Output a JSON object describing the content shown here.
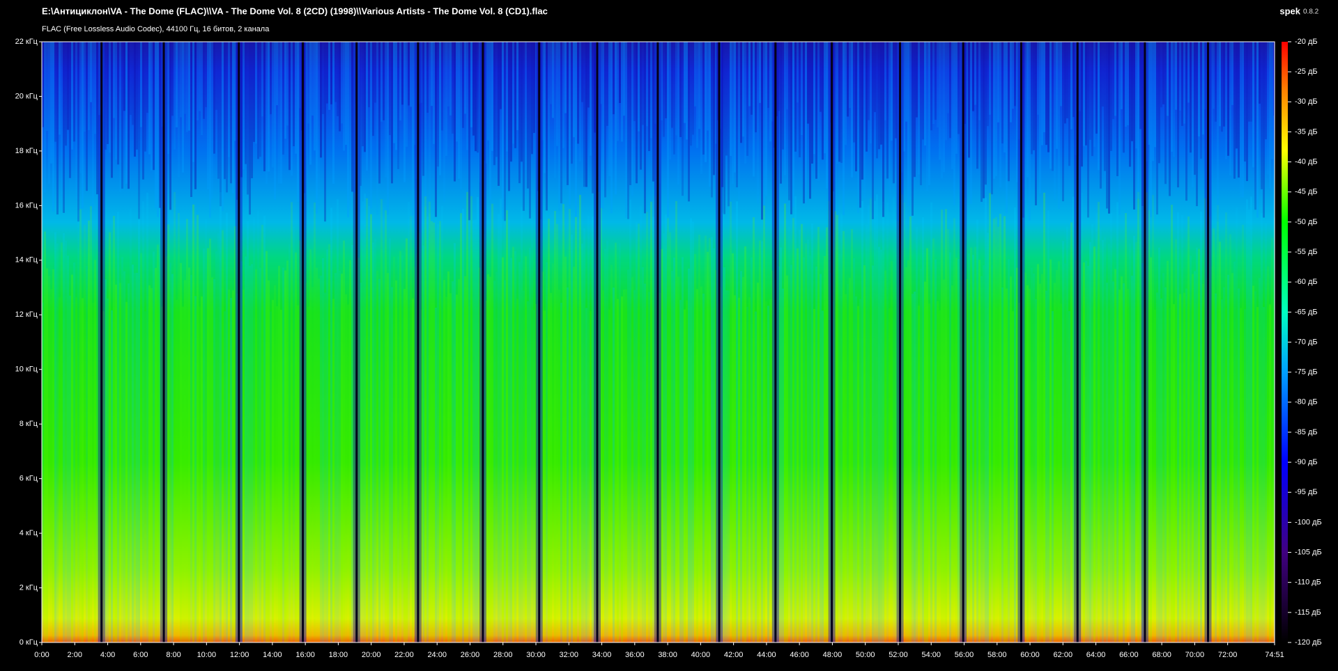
{
  "header": {
    "path": "E:\\Антициклон\\VA - The Dome (FLAC)\\\\VA - The Dome Vol. 8 (2CD) (1998)\\\\Various Artists - The Dome Vol. 8 (CD1).flac",
    "info": "FLAC (Free Lossless Audio Codec), 44100 Гц, 16 битов, 2 канала",
    "app": "spek",
    "version": "0.8.2"
  },
  "frequency_axis": {
    "labels": [
      "0 кГц",
      "2 кГц",
      "4 кГц",
      "6 кГц",
      "8 кГц",
      "10 кГц",
      "12 кГц",
      "14 кГц",
      "16 кГц",
      "18 кГц",
      "20 кГц",
      "22 кГц"
    ]
  },
  "time_axis": {
    "labels": [
      "0:00",
      "2:00",
      "4:00",
      "6:00",
      "8:00",
      "10:00",
      "12:00",
      "14:00",
      "16:00",
      "18:00",
      "20:00",
      "22:00",
      "24:00",
      "26:00",
      "28:00",
      "30:00",
      "32:00",
      "34:00",
      "36:00",
      "38:00",
      "40:00",
      "42:00",
      "44:00",
      "46:00",
      "48:00",
      "50:00",
      "52:00",
      "54:00",
      "56:00",
      "58:00",
      "60:00",
      "62:00",
      "64:00",
      "66:00",
      "68:00",
      "70:00",
      "72:00",
      "74:51"
    ]
  },
  "level_axis": {
    "labels": [
      "-20 дБ",
      "-25 дБ",
      "-30 дБ",
      "-35 дБ",
      "-40 дБ",
      "-45 дБ",
      "-50 дБ",
      "-55 дБ",
      "-60 дБ",
      "-65 дБ",
      "-70 дБ",
      "-75 дБ",
      "-80 дБ",
      "-85 дБ",
      "-90 дБ",
      "-95 дБ",
      "-100 дБ",
      "-105 дБ",
      "-110 дБ",
      "-115 дБ",
      "-120 дБ"
    ]
  }
}
